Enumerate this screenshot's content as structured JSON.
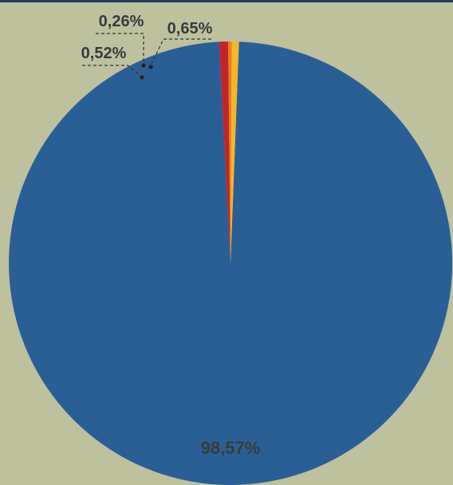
{
  "chart_data": {
    "type": "pie",
    "title": "",
    "legend": "none",
    "slices": [
      {
        "label": "98,57%",
        "value": 98.57,
        "color": "#2a5f96"
      },
      {
        "label": "0,65%",
        "value": 0.65,
        "color": "#c0262b"
      },
      {
        "label": "0,26%",
        "value": 0.26,
        "color": "#ee7f1a"
      },
      {
        "label": "0,52%",
        "value": 0.52,
        "color": "#f4b72a"
      }
    ]
  }
}
